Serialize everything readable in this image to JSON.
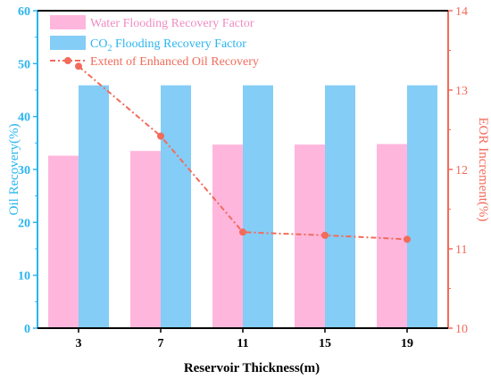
{
  "chart_data": {
    "type": "bar",
    "categories": [
      "3",
      "7",
      "11",
      "15",
      "19"
    ],
    "xlabel": "Reservoir Thickness(m)",
    "ylabel_left": "Oil Recovery(%)",
    "ylabel_right": "EOR Increment(%)",
    "ylim_left": [
      0,
      60
    ],
    "yticks_left": [
      "0",
      "10",
      "20",
      "30",
      "40",
      "50",
      "60"
    ],
    "ylim_right": [
      10,
      14
    ],
    "yticks_right": [
      "10",
      "11",
      "12",
      "13",
      "14"
    ],
    "grid": false,
    "legend_position": "top",
    "series": [
      {
        "name": "Water Flooding Recovery Factor",
        "kind": "bar",
        "axis": "left",
        "color": "#ffb6dd",
        "values": [
          32.6,
          33.5,
          34.7,
          34.7,
          34.8
        ]
      },
      {
        "name": "CO",
        "name_sub": "2",
        "name_rest": " Flooding Recovery Factor",
        "kind": "bar",
        "axis": "left",
        "color": "#84cdf6",
        "values": [
          45.9,
          45.9,
          45.9,
          45.9,
          45.9
        ]
      },
      {
        "name": "Extent of Enhanced Oil Recovery",
        "kind": "line",
        "axis": "right",
        "color": "#f26b5b",
        "values": [
          13.3,
          12.42,
          11.21,
          11.17,
          11.12
        ]
      }
    ],
    "colors": {
      "left_axis": "#29b5f0",
      "right_axis": "#f26b5b",
      "bottom_axis": "#000000"
    }
  }
}
